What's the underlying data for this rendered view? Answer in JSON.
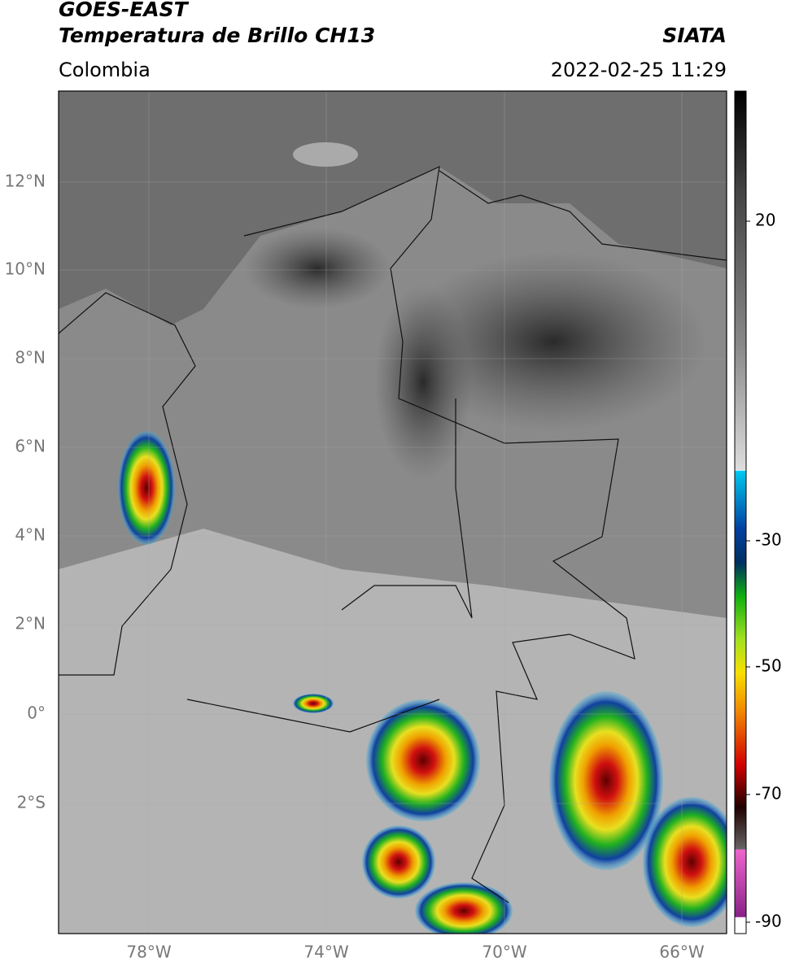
{
  "header": {
    "satellite": "GOES-EAST",
    "product": "Temperatura de Brillo CH13",
    "source": "SIATA",
    "region": "Colombia",
    "timestamp": "2022-02-25 11:29"
  },
  "map": {
    "lat_labels": [
      "12°N",
      "10°N",
      "8°N",
      "6°N",
      "4°N",
      "2°N",
      "0°",
      "2°S"
    ],
    "lon_labels": [
      "78°W",
      "74°W",
      "70°W",
      "66°W"
    ]
  },
  "colorbar": {
    "labels": [
      "20",
      "-30",
      "-50",
      "-70",
      "-90"
    ]
  }
}
